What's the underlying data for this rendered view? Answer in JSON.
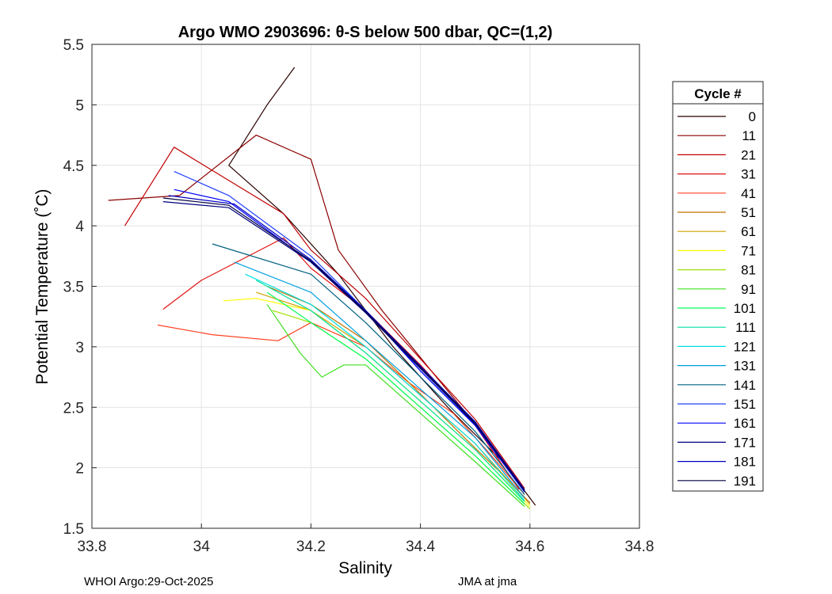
{
  "chart_data": {
    "type": "line",
    "title": "Argo WMO 2903696: θ-S below 500 dbar,  QC=(1,2)",
    "xlabel": "Salinity",
    "ylabel": "Potential Temperature (˚C)",
    "xlim": [
      33.8,
      34.8
    ],
    "ylim": [
      1.5,
      5.5
    ],
    "xticks": [
      "33.8",
      "34",
      "34.2",
      "34.4",
      "34.6",
      "34.8"
    ],
    "yticks": [
      "1.5",
      "2",
      "2.5",
      "3",
      "3.5",
      "4",
      "4.5",
      "5",
      "5.5"
    ],
    "grid": true,
    "legend_title": "Cycle #",
    "legend_position": "right-outside",
    "series": [
      {
        "name": "0",
        "color": "#2b0000",
        "values": [
          [
            34.17,
            5.31
          ],
          [
            34.12,
            5.0
          ],
          [
            34.05,
            4.5
          ],
          [
            34.15,
            4.1
          ],
          [
            34.25,
            3.6
          ],
          [
            34.35,
            3.0
          ],
          [
            34.45,
            2.5
          ],
          [
            34.55,
            2.05
          ],
          [
            34.61,
            1.69
          ]
        ]
      },
      {
        "name": "11",
        "color": "#8b0000",
        "values": [
          [
            33.83,
            4.21
          ],
          [
            33.96,
            4.25
          ],
          [
            34.1,
            4.75
          ],
          [
            34.2,
            4.55
          ],
          [
            34.25,
            3.8
          ],
          [
            34.33,
            3.3
          ],
          [
            34.42,
            2.8
          ],
          [
            34.52,
            2.25
          ],
          [
            34.59,
            1.82
          ]
        ]
      },
      {
        "name": "21",
        "color": "#c00000",
        "values": [
          [
            33.86,
            4.0
          ],
          [
            33.95,
            4.65
          ],
          [
            34.15,
            4.1
          ],
          [
            34.2,
            3.8
          ],
          [
            34.3,
            3.4
          ],
          [
            34.4,
            2.9
          ],
          [
            34.5,
            2.4
          ],
          [
            34.59,
            1.83
          ]
        ]
      },
      {
        "name": "31",
        "color": "#e01010",
        "values": [
          [
            33.93,
            3.31
          ],
          [
            34.0,
            3.55
          ],
          [
            34.15,
            3.9
          ],
          [
            34.2,
            3.65
          ],
          [
            34.3,
            3.3
          ],
          [
            34.4,
            2.85
          ],
          [
            34.5,
            2.35
          ],
          [
            34.58,
            1.82
          ]
        ]
      },
      {
        "name": "41",
        "color": "#ff4020",
        "values": [
          [
            33.92,
            3.18
          ],
          [
            34.02,
            3.1
          ],
          [
            34.14,
            3.05
          ],
          [
            34.2,
            3.2
          ],
          [
            34.3,
            3.0
          ],
          [
            34.38,
            2.7
          ],
          [
            34.46,
            2.45
          ],
          [
            34.52,
            2.15
          ],
          [
            34.59,
            1.78
          ]
        ]
      },
      {
        "name": "51",
        "color": "#c07000",
        "values": [
          [
            34.12,
            3.5
          ],
          [
            34.2,
            3.35
          ],
          [
            34.3,
            3.05
          ],
          [
            34.38,
            2.7
          ],
          [
            34.48,
            2.25
          ],
          [
            34.56,
            1.9
          ],
          [
            34.6,
            1.71
          ]
        ]
      },
      {
        "name": "61",
        "color": "#d0a000",
        "values": [
          [
            34.1,
            3.45
          ],
          [
            34.2,
            3.3
          ],
          [
            34.3,
            3.0
          ],
          [
            34.4,
            2.6
          ],
          [
            34.5,
            2.2
          ],
          [
            34.6,
            1.7
          ]
        ]
      },
      {
        "name": "71",
        "color": "#ffff00",
        "values": [
          [
            34.04,
            3.38
          ],
          [
            34.1,
            3.4
          ],
          [
            34.2,
            3.3
          ],
          [
            34.3,
            2.95
          ],
          [
            34.4,
            2.55
          ],
          [
            34.5,
            2.15
          ],
          [
            34.6,
            1.68
          ]
        ]
      },
      {
        "name": "81",
        "color": "#a0e000",
        "values": [
          [
            34.13,
            3.3
          ],
          [
            34.2,
            3.2
          ],
          [
            34.3,
            2.9
          ],
          [
            34.4,
            2.5
          ],
          [
            34.5,
            2.1
          ],
          [
            34.6,
            1.66
          ]
        ]
      },
      {
        "name": "91",
        "color": "#40e020",
        "values": [
          [
            34.12,
            3.35
          ],
          [
            34.18,
            2.95
          ],
          [
            34.22,
            2.75
          ],
          [
            34.26,
            2.85
          ],
          [
            34.3,
            2.85
          ],
          [
            34.4,
            2.45
          ],
          [
            34.5,
            2.05
          ],
          [
            34.59,
            1.68
          ]
        ]
      },
      {
        "name": "101",
        "color": "#00ff60",
        "values": [
          [
            34.12,
            3.45
          ],
          [
            34.2,
            3.2
          ],
          [
            34.3,
            2.9
          ],
          [
            34.4,
            2.5
          ],
          [
            34.5,
            2.1
          ],
          [
            34.59,
            1.7
          ]
        ]
      },
      {
        "name": "111",
        "color": "#00e0a0",
        "values": [
          [
            34.1,
            3.55
          ],
          [
            34.2,
            3.3
          ],
          [
            34.3,
            2.95
          ],
          [
            34.4,
            2.55
          ],
          [
            34.5,
            2.15
          ],
          [
            34.59,
            1.72
          ]
        ]
      },
      {
        "name": "121",
        "color": "#00e0e0",
        "values": [
          [
            34.08,
            3.6
          ],
          [
            34.2,
            3.35
          ],
          [
            34.3,
            3.0
          ],
          [
            34.4,
            2.6
          ],
          [
            34.5,
            2.2
          ],
          [
            34.59,
            1.73
          ]
        ]
      },
      {
        "name": "131",
        "color": "#00a0e0",
        "values": [
          [
            34.06,
            3.7
          ],
          [
            34.2,
            3.45
          ],
          [
            34.3,
            3.05
          ],
          [
            34.4,
            2.65
          ],
          [
            34.5,
            2.25
          ],
          [
            34.59,
            1.75
          ]
        ]
      },
      {
        "name": "141",
        "color": "#006080",
        "values": [
          [
            34.02,
            3.85
          ],
          [
            34.2,
            3.6
          ],
          [
            34.3,
            3.2
          ],
          [
            34.4,
            2.75
          ],
          [
            34.5,
            2.3
          ],
          [
            34.59,
            1.78
          ]
        ]
      },
      {
        "name": "151",
        "color": "#2040ff",
        "values": [
          [
            33.95,
            4.45
          ],
          [
            34.05,
            4.25
          ],
          [
            34.2,
            3.75
          ],
          [
            34.3,
            3.3
          ],
          [
            34.4,
            2.8
          ],
          [
            34.5,
            2.35
          ],
          [
            34.59,
            1.8
          ]
        ]
      },
      {
        "name": "161",
        "color": "#0000ff",
        "values": [
          [
            33.95,
            4.3
          ],
          [
            34.05,
            4.2
          ],
          [
            34.2,
            3.7
          ],
          [
            34.3,
            3.3
          ],
          [
            34.4,
            2.8
          ],
          [
            34.5,
            2.35
          ],
          [
            34.59,
            1.8
          ]
        ]
      },
      {
        "name": "171",
        "color": "#000080",
        "values": [
          [
            33.93,
            4.2
          ],
          [
            34.05,
            4.15
          ],
          [
            34.2,
            3.7
          ],
          [
            34.3,
            3.28
          ],
          [
            34.4,
            2.82
          ],
          [
            34.5,
            2.36
          ],
          [
            34.59,
            1.81
          ]
        ]
      },
      {
        "name": "181",
        "color": "#0000c0",
        "values": [
          [
            33.94,
            4.25
          ],
          [
            34.06,
            4.18
          ],
          [
            34.2,
            3.72
          ],
          [
            34.3,
            3.3
          ],
          [
            34.4,
            2.84
          ],
          [
            34.5,
            2.38
          ],
          [
            34.59,
            1.82
          ]
        ]
      },
      {
        "name": "191",
        "color": "#000040",
        "values": [
          [
            33.93,
            4.23
          ],
          [
            34.05,
            4.17
          ],
          [
            34.2,
            3.71
          ],
          [
            34.3,
            3.29
          ],
          [
            34.4,
            2.83
          ],
          [
            34.5,
            2.37
          ],
          [
            34.59,
            1.81
          ]
        ]
      }
    ]
  },
  "footer": {
    "left": "WHOI Argo:29-Oct-2025",
    "right": "JMA at jma"
  }
}
